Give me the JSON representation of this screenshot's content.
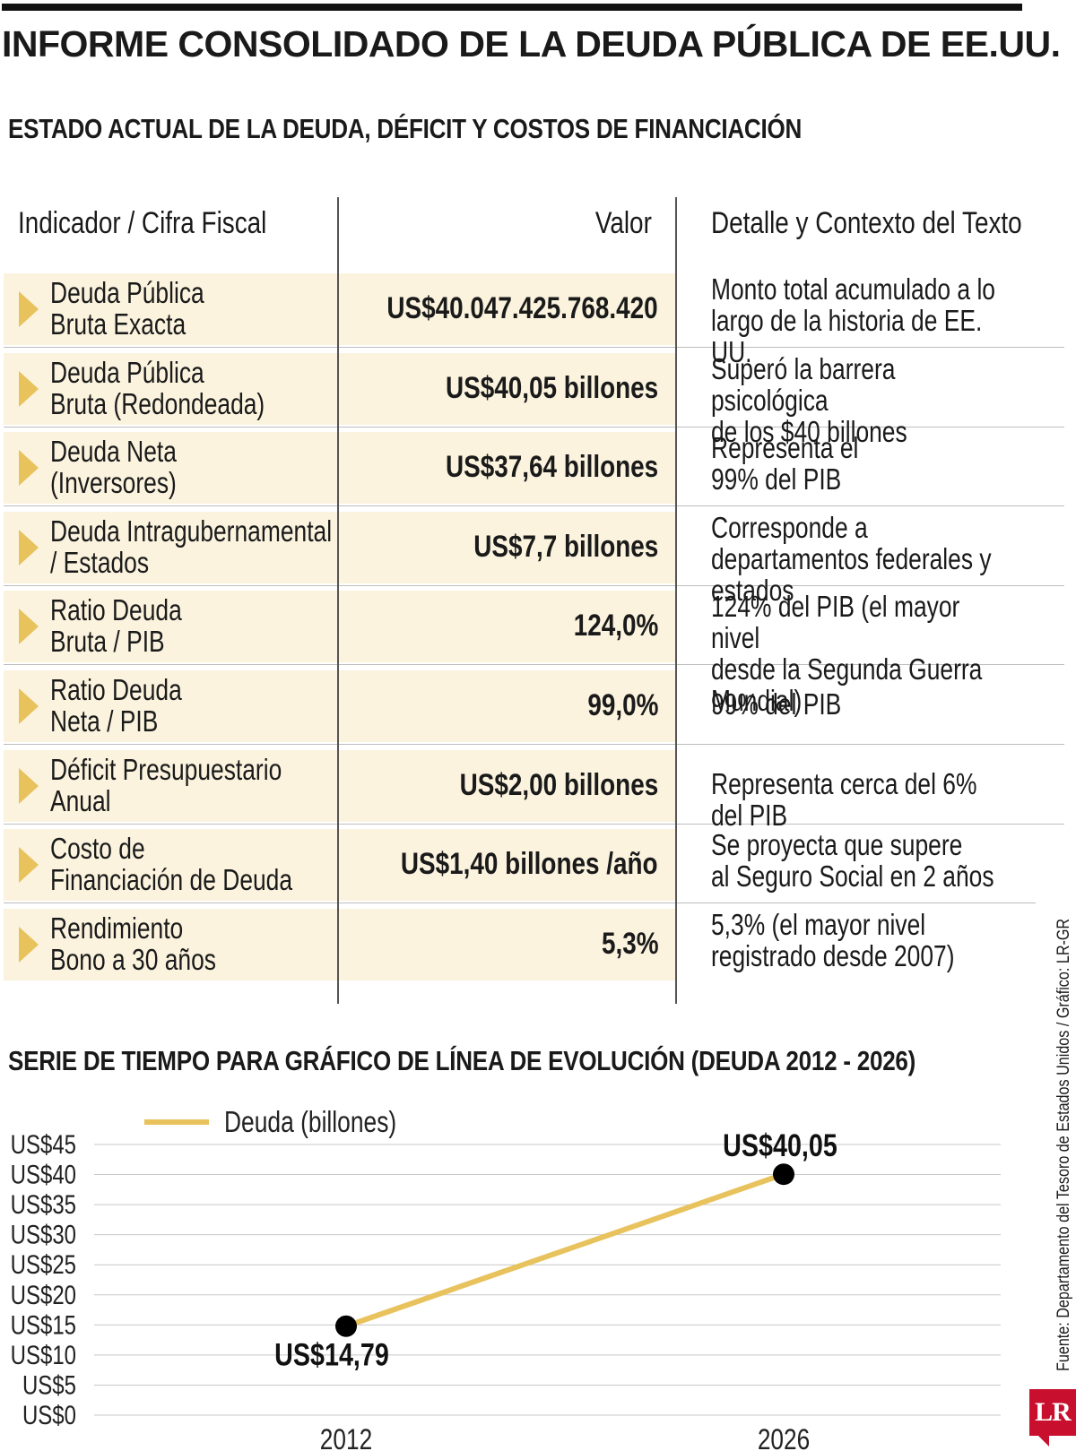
{
  "header": {
    "title": "INFORME CONSOLIDADO DE LA DEUDA PÚBLICA DE EE.UU.",
    "subtitle": "ESTADO ACTUAL DE LA DEUDA, DÉFICIT Y COSTOS DE FINANCIACIÓN"
  },
  "table": {
    "headers": {
      "indicator": "Indicador / Cifra Fiscal",
      "value": "Valor",
      "detail": "Detalle y Contexto del Texto"
    },
    "rows": [
      {
        "indicator": "Deuda Pública\nBruta Exacta",
        "value": "US$40.047.425.768.420",
        "detail": "Monto total acumulado a lo\nlargo de la historia de EE. UU."
      },
      {
        "indicator": "Deuda Pública\nBruta (Redondeada)",
        "value": "US$40,05 billones",
        "detail": "Superó la barrera psicológica\nde los $40 billones"
      },
      {
        "indicator": "Deuda Neta\n(Inversores)",
        "value": "US$37,64 billones",
        "detail": "Representa el\n99% del PIB"
      },
      {
        "indicator": "Deuda Intragubernamental\n/ Estados",
        "value": "US$7,7  billones",
        "detail": "Corresponde a\ndepartamentos federales y estados"
      },
      {
        "indicator": "Ratio Deuda\nBruta / PIB",
        "value": "124,0%",
        "detail": "124% del PIB (el mayor nivel\ndesde la Segunda Guerra Mundial)"
      },
      {
        "indicator": "Ratio Deuda\nNeta / PIB",
        "value": "99,0%",
        "detail": "99% del PIB"
      },
      {
        "indicator": "Déficit Presupuestario\nAnual",
        "value": "US$2,00 billones",
        "detail": "Representa cerca del 6% del PIB"
      },
      {
        "indicator": "Costo de\nFinanciación de Deuda",
        "value": "US$1,40  billones /año",
        "detail": "Se proyecta que supere\nal Seguro Social en 2 años"
      },
      {
        "indicator": "Rendimiento\nBono a 30 años",
        "value": "5,3%",
        "detail": "5,3% (el mayor nivel\nregistrado desde 2007)"
      }
    ]
  },
  "chart_title": "SERIE DE TIEMPO PARA GRÁFICO DE LÍNEA DE EVOLUCIÓN (DEUDA 2012 - 2026)",
  "chart_data": {
    "type": "line",
    "title": "SERIE DE TIEMPO PARA GRÁFICO DE LÍNEA DE EVOLUCIÓN (DEUDA 2012 - 2026)",
    "x": [
      "2012",
      "2026"
    ],
    "series": [
      {
        "name": "Deuda (billones)",
        "values": [
          14.79,
          40.05
        ],
        "color": "#e8c25c"
      }
    ],
    "data_labels": [
      "US$14,79",
      "US$40,05"
    ],
    "ylim": [
      0,
      45
    ],
    "yticks": [
      0,
      5,
      10,
      15,
      20,
      25,
      30,
      35,
      40,
      45
    ],
    "ytick_labels": [
      "US$0",
      "US$5",
      "US$10",
      "US$15",
      "US$20",
      "US$25",
      "US$30",
      "US$35",
      "US$40",
      "US$45"
    ],
    "xlabel": "",
    "ylabel": "",
    "grid": true,
    "legend": "top-left"
  },
  "source": "Fuente: Departamento del Tesoro de Estados Unidos / Gráfico: LR-GR",
  "logo": "LR",
  "colors": {
    "accent": "#e8c25c",
    "row_shade": "#fbf3de",
    "marker": "#000000",
    "logo": "#c8102e"
  }
}
